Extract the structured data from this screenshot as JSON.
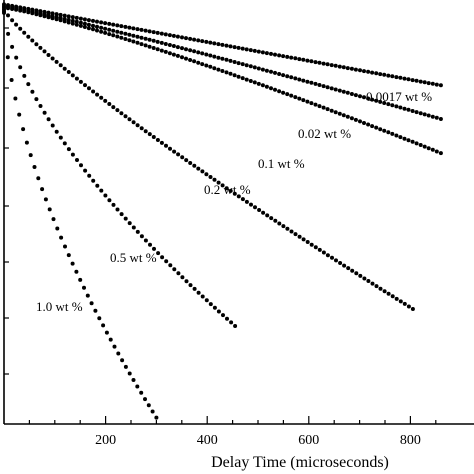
{
  "chart_data": {
    "type": "scatter",
    "title": "",
    "xlabel": "Delay Time (microseconds)",
    "ylabel": "",
    "xlim": [
      0,
      880
    ],
    "ylim": [
      0,
      1
    ],
    "x_ticks": [
      200,
      400,
      600,
      800
    ],
    "grid": false,
    "legend": "none",
    "series": [
      {
        "name": "0.0017 wt %",
        "x_end": 860,
        "y_end": 0.795,
        "curve": 1.0
      },
      {
        "name": "0.02 wt %",
        "x_end": 860,
        "y_end": 0.716,
        "curve": 1.1
      },
      {
        "name": "0.1 wt %",
        "x_end": 860,
        "y_end": 0.636,
        "curve": 1.2
      },
      {
        "name": "0.2 wt %",
        "x_end": 805,
        "y_end": 0.27,
        "curve": 0.85
      },
      {
        "name": "0.5 wt %",
        "x_end": 455,
        "y_end": 0.23,
        "curve": 0.65
      },
      {
        "name": "1.0 wt %",
        "x_end": 300,
        "y_end": 0.015,
        "curve": 0.6
      }
    ]
  }
}
